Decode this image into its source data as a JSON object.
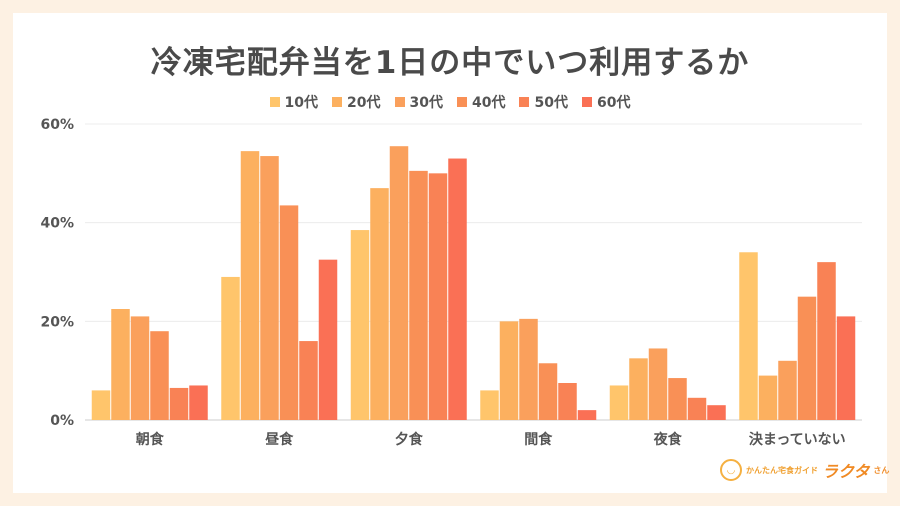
{
  "chart_data": {
    "type": "bar",
    "title": "冷凍宅配弁当を1日の中でいつ利用するか",
    "categories": [
      "朝食",
      "昼食",
      "夕食",
      "間食",
      "夜食",
      "決まっていない"
    ],
    "series": [
      {
        "name": "10代",
        "color": "#ffc56b",
        "values": [
          6,
          29,
          38.5,
          6,
          7,
          34
        ]
      },
      {
        "name": "20代",
        "color": "#fcb05f",
        "values": [
          22.5,
          54.5,
          47,
          20,
          12.5,
          9
        ]
      },
      {
        "name": "30代",
        "color": "#faa05c",
        "values": [
          21,
          53.5,
          55.5,
          20.5,
          14.5,
          12
        ]
      },
      {
        "name": "40代",
        "color": "#f99056",
        "values": [
          18,
          43.5,
          50.5,
          11.5,
          8.5,
          25
        ]
      },
      {
        "name": "50代",
        "color": "#f98255",
        "values": [
          6.5,
          16,
          50,
          7.5,
          4.5,
          32
        ]
      },
      {
        "name": "60代",
        "color": "#fa7055",
        "values": [
          7,
          32.5,
          53,
          2,
          3,
          21
        ]
      }
    ],
    "yticks": [
      0,
      20,
      40,
      60
    ],
    "ytick_labels": [
      "0%",
      "20%",
      "40%",
      "60%"
    ],
    "ylim": [
      0,
      60
    ],
    "grid": true,
    "legend_position": "top-center"
  },
  "brand": {
    "logo_icon": "rice-bowl-icon",
    "tagline": "かんたん宅食ガイド",
    "name": "ラクタ",
    "suffix": "さん"
  }
}
